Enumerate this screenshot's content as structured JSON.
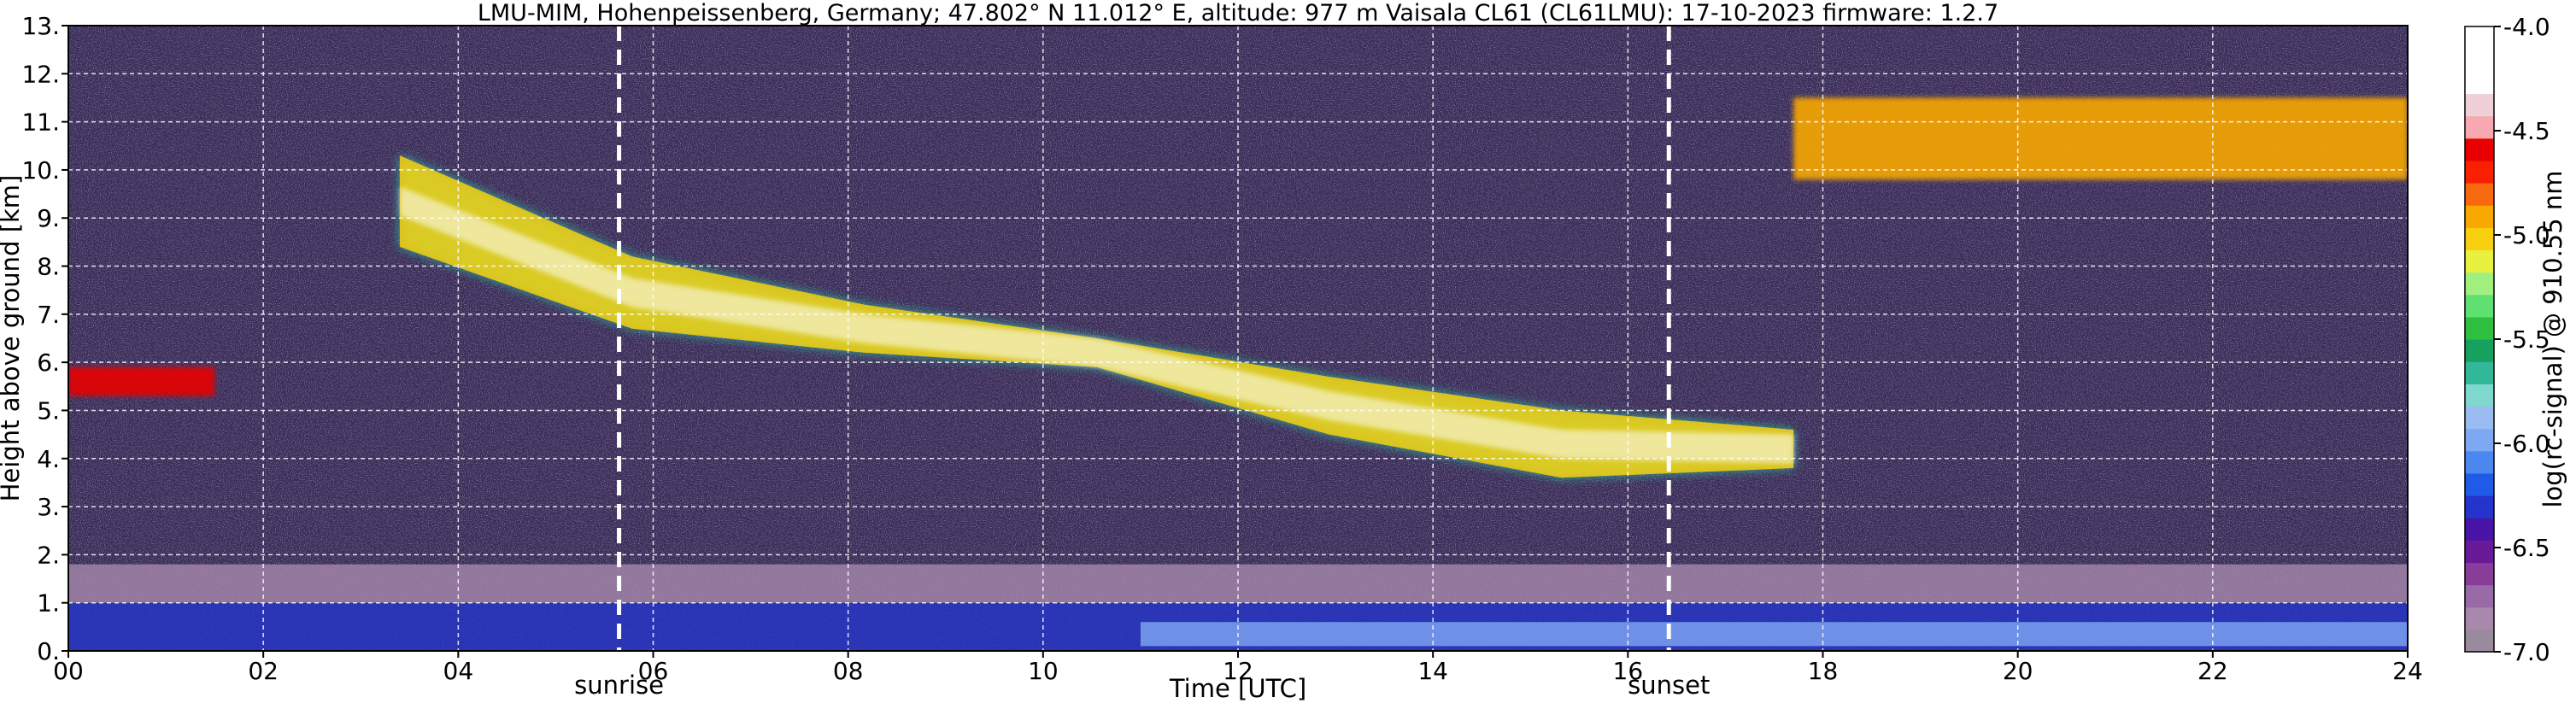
{
  "chart_data": {
    "type": "heatmap",
    "title": "LMU-MIM, Hohenpeissenberg, Germany; 47.802° N 11.012° E, altitude: 977 m    Vaisala CL61 (CL61LMU): 17-10-2023    firmware: 1.2.7",
    "xlabel": "Time [UTC]",
    "ylabel": "Height above ground [km]",
    "colorbar_label": "log(rc-signal) @ 910.55 nm",
    "xlim": [
      0,
      24
    ],
    "ylim": [
      0,
      13
    ],
    "x_ticks": [
      {
        "value": 0,
        "label": "00"
      },
      {
        "value": 2,
        "label": "02"
      },
      {
        "value": 4,
        "label": "04"
      },
      {
        "value": 6,
        "label": "06"
      },
      {
        "value": 8,
        "label": "08"
      },
      {
        "value": 10,
        "label": "10"
      },
      {
        "value": 12,
        "label": "12"
      },
      {
        "value": 14,
        "label": "14"
      },
      {
        "value": 16,
        "label": "16"
      },
      {
        "value": 18,
        "label": "18"
      },
      {
        "value": 20,
        "label": "20"
      },
      {
        "value": 22,
        "label": "22"
      },
      {
        "value": 24,
        "label": "24"
      }
    ],
    "y_ticks": [
      {
        "value": 0,
        "label": "0."
      },
      {
        "value": 1,
        "label": "1."
      },
      {
        "value": 2,
        "label": "2."
      },
      {
        "value": 3,
        "label": "3."
      },
      {
        "value": 4,
        "label": "4."
      },
      {
        "value": 5,
        "label": "5."
      },
      {
        "value": 6,
        "label": "6."
      },
      {
        "value": 7,
        "label": "7."
      },
      {
        "value": 8,
        "label": "8."
      },
      {
        "value": 9,
        "label": "9."
      },
      {
        "value": 10,
        "label": "10."
      },
      {
        "value": 11,
        "label": "11."
      },
      {
        "value": 12,
        "label": "12."
      },
      {
        "value": 13,
        "label": "13."
      }
    ],
    "colorbar_range": [
      -7.0,
      -4.0
    ],
    "colorbar_ticks": [
      {
        "value": -4.0,
        "label": "-4.0"
      },
      {
        "value": -4.5,
        "label": "-4.5"
      },
      {
        "value": -5.0,
        "label": "-5.0"
      },
      {
        "value": -5.5,
        "label": "-5.5"
      },
      {
        "value": -6.0,
        "label": "-6.0"
      },
      {
        "value": -6.5,
        "label": "-6.5"
      },
      {
        "value": -7.0,
        "label": "-7.0"
      }
    ],
    "colormap": [
      "#9a8a9e",
      "#a888ad",
      "#9a6aa8",
      "#8a3c9a",
      "#6a1a96",
      "#4a14a8",
      "#2434cc",
      "#1f5be8",
      "#4d88f0",
      "#7fa8f2",
      "#9bbcf0",
      "#7fd8d0",
      "#30b898",
      "#18a060",
      "#30c040",
      "#60e070",
      "#a0f080",
      "#e8f040",
      "#f8d010",
      "#f8a800",
      "#f86810",
      "#f82000",
      "#e80000",
      "#f8a8b0",
      "#f0d0d8",
      "#ffffff",
      "#ffffff",
      "#ffffff"
    ],
    "grid": true,
    "grid_style": "white dashed",
    "markers": [
      {
        "x": 5.65,
        "label": "sunrise"
      },
      {
        "x": 16.42,
        "label": "sunset"
      }
    ],
    "layers": [
      {
        "name": "aerosol boundary layer",
        "x_range": [
          0,
          24
        ],
        "y_range": [
          0,
          1.0
        ],
        "value": -6.3
      },
      {
        "name": "residual layer",
        "x_range": [
          0,
          24
        ],
        "y_range": [
          1.0,
          1.8
        ],
        "value": -6.8
      },
      {
        "name": "daytime mixed layer",
        "x_range": [
          11,
          24
        ],
        "y_range": [
          0.1,
          0.6
        ],
        "value": -6.0
      },
      {
        "name": "low cloud at 0-1 UTC",
        "x_range": [
          0.0,
          1.5
        ],
        "y_range": [
          5.3,
          5.9
        ],
        "value": -4.6
      },
      {
        "name": "cirrus band 3-18 UTC",
        "x_range": [
          3.4,
          17.7
        ],
        "y_top_km": [
          10.3,
          8.2,
          7.2,
          6.5,
          5.7,
          5.0,
          4.6
        ],
        "y_bottom_km": [
          8.4,
          6.7,
          6.2,
          5.9,
          4.5,
          3.6,
          3.8
        ],
        "value": -5.0
      },
      {
        "name": "upper cirrus 18-24 UTC",
        "x_range": [
          17.7,
          24
        ],
        "y_range": [
          9.8,
          11.5
        ],
        "value": -4.9
      }
    ]
  }
}
